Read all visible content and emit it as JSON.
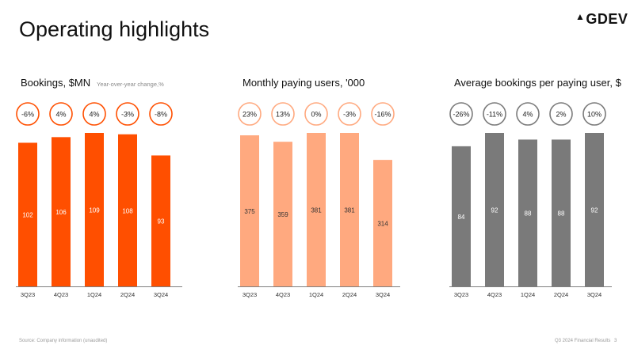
{
  "logo_text": "GDEV",
  "page_title": "Operating highlights",
  "footer": {
    "source": "Source: Company information (unaudited)",
    "report": "Q3 2024 Financial Results",
    "page": "3"
  },
  "chart_data": [
    {
      "type": "bar",
      "title": "Bookings, $MN",
      "subtitle": "Year-over-year change,%",
      "categories": [
        "3Q23",
        "4Q23",
        "1Q24",
        "2Q24",
        "3Q24"
      ],
      "values": [
        102,
        106,
        109,
        108,
        93
      ],
      "yoy_change": [
        "-6%",
        "4%",
        "4%",
        "-3%",
        "-8%"
      ],
      "bar_color": "#ff4f00",
      "label_color": "#ffffff",
      "circle_fill": "#ffffff",
      "circle_stroke": "#ff4f00",
      "ylim": [
        0,
        109
      ],
      "grid": false
    },
    {
      "type": "bar",
      "title": "Monthly paying users, '000",
      "categories": [
        "3Q23",
        "4Q23",
        "1Q24",
        "2Q24",
        "3Q24"
      ],
      "values": [
        375,
        359,
        381,
        381,
        314
      ],
      "yoy_change": [
        "23%",
        "13%",
        "0%",
        "-3%",
        "-16%"
      ],
      "bar_color": "#ffa97f",
      "label_color": "#333333",
      "circle_fill": "#ffffff",
      "circle_stroke": "#ffa97f",
      "ylim": [
        0,
        381
      ],
      "grid": false
    },
    {
      "type": "bar",
      "title": "Average bookings per paying user, $",
      "categories": [
        "3Q23",
        "4Q23",
        "1Q24",
        "2Q24",
        "3Q24"
      ],
      "values": [
        84,
        92,
        88,
        88,
        92
      ],
      "yoy_change": [
        "-26%",
        "-11%",
        "4%",
        "2%",
        "10%"
      ],
      "bar_color": "#7a7a7a",
      "label_color": "#ffffff",
      "circle_fill": "#ffffff",
      "circle_stroke": "#7a7a7a",
      "ylim": [
        0,
        92
      ],
      "grid": false
    }
  ]
}
